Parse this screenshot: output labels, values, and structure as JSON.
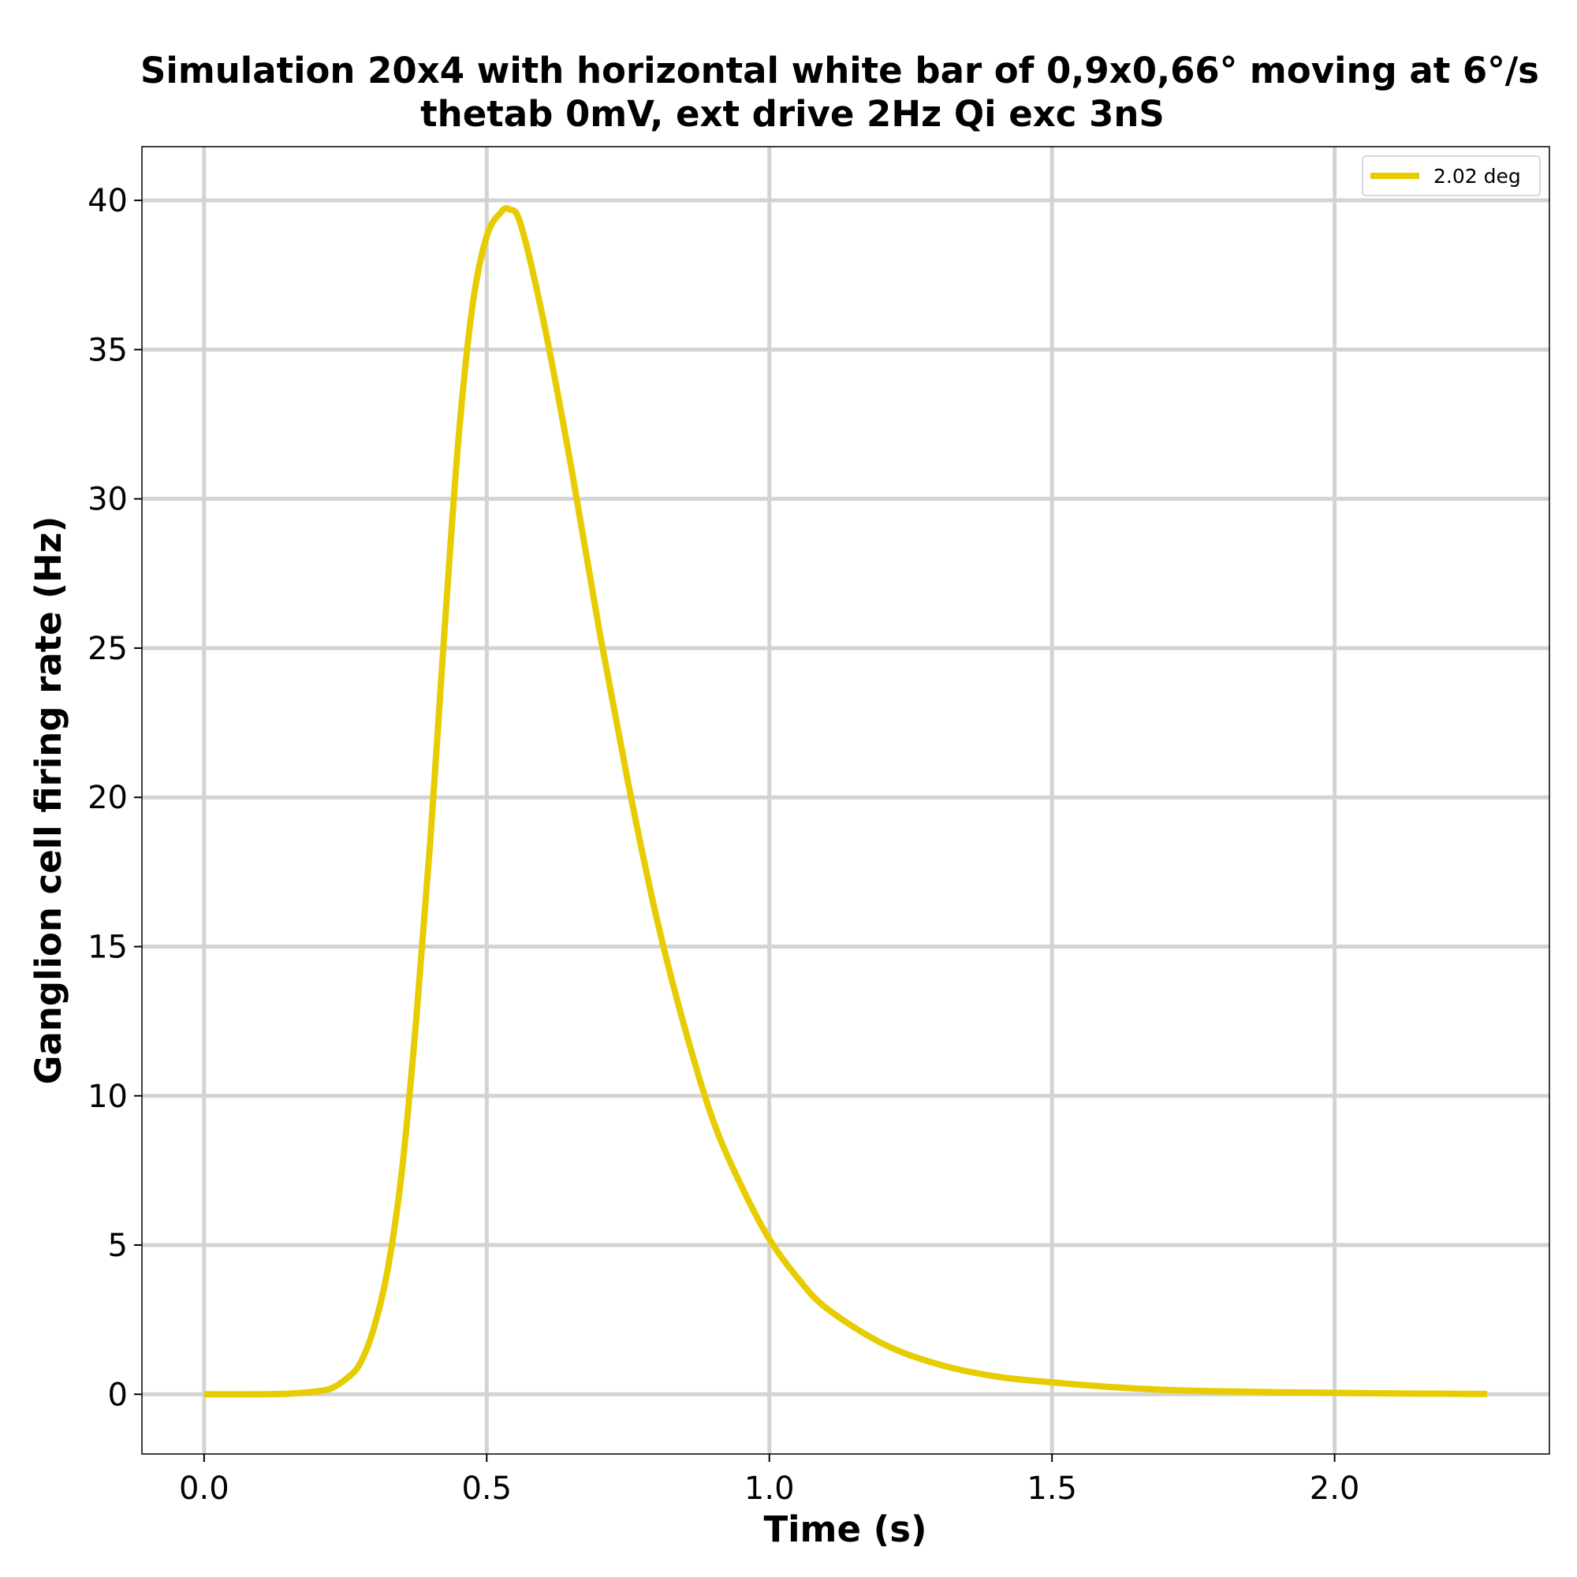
{
  "chart_data": {
    "type": "line",
    "title_line1": "Simulation 20x4 with horizontal white bar of 0,9x0,66° moving at 6°/s",
    "title_line2": "thetab 0mV, ext drive 2Hz Qi exc 3nS",
    "xlabel": "Time (s)",
    "ylabel": "Ganglion cell firing rate (Hz)",
    "xlim": [
      -0.11,
      2.38
    ],
    "ylim": [
      -2,
      41.8
    ],
    "xticks": [
      0.0,
      0.5,
      1.0,
      1.5,
      2.0
    ],
    "xtick_labels": [
      "0.0",
      "0.5",
      "1.0",
      "1.5",
      "2.0"
    ],
    "yticks": [
      0,
      5,
      10,
      15,
      20,
      25,
      30,
      35,
      40
    ],
    "ytick_labels": [
      "0",
      "5",
      "10",
      "15",
      "20",
      "25",
      "30",
      "35",
      "40"
    ],
    "grid": true,
    "legend_position": "upper right",
    "series": [
      {
        "name": "2.02 deg",
        "color": "#e6cc00",
        "x": [
          0.0,
          0.1,
          0.15,
          0.2,
          0.225,
          0.25,
          0.275,
          0.3,
          0.325,
          0.35,
          0.375,
          0.4,
          0.425,
          0.45,
          0.475,
          0.5,
          0.525,
          0.54,
          0.56,
          0.6,
          0.65,
          0.7,
          0.75,
          0.8,
          0.85,
          0.9,
          0.95,
          1.0,
          1.05,
          1.1,
          1.2,
          1.3,
          1.4,
          1.5,
          1.6,
          1.7,
          1.8,
          1.9,
          2.0,
          2.1,
          2.2,
          2.27
        ],
        "y": [
          0.0,
          0.0,
          0.02,
          0.1,
          0.2,
          0.5,
          1.0,
          2.2,
          4.2,
          7.5,
          12.5,
          18.5,
          25.5,
          32.0,
          36.5,
          38.8,
          39.6,
          39.7,
          39.2,
          36.0,
          31.0,
          25.5,
          20.5,
          16.0,
          12.3,
          9.2,
          7.0,
          5.2,
          3.9,
          2.9,
          1.7,
          1.0,
          0.6,
          0.4,
          0.25,
          0.15,
          0.1,
          0.07,
          0.05,
          0.03,
          0.02,
          0.01
        ]
      }
    ]
  }
}
